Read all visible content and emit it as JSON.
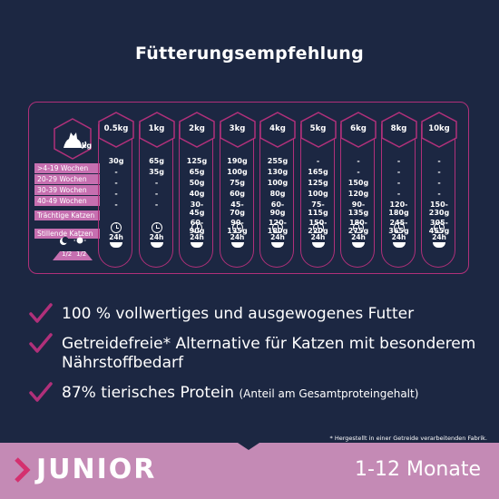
{
  "title": "Fütterungsempfehlung",
  "table": {
    "unit": "kg",
    "row_labels": [
      ">4-19 Wochen",
      "20-29 Wochen",
      "30-39 Wochen",
      "40-49 Wochen",
      "Trächtige Katzen",
      "Stillende Katzen"
    ],
    "meal_fractions": [
      "1/2",
      "1/2"
    ],
    "columns": [
      {
        "weight": "0.5kg",
        "values": [
          "30g",
          "-",
          "-",
          "-",
          "-",
          "-"
        ],
        "hours": "24h"
      },
      {
        "weight": "1kg",
        "values": [
          "65g",
          "35g",
          "-",
          "-",
          "-",
          "-"
        ],
        "hours": "24h"
      },
      {
        "weight": "2kg",
        "values": [
          "125g",
          "65g",
          "50g",
          "40g",
          "30-\n45g",
          "60-\n90g"
        ],
        "hours": "24h"
      },
      {
        "weight": "3kg",
        "values": [
          "190g",
          "100g",
          "75g",
          "60g",
          "45-\n70g",
          "90-\n135g"
        ],
        "hours": "24h"
      },
      {
        "weight": "4kg",
        "values": [
          "255g",
          "130g",
          "100g",
          "80g",
          "60-\n90g",
          "120-\n180g"
        ],
        "hours": "24h"
      },
      {
        "weight": "5kg",
        "values": [
          "-",
          "165g",
          "125g",
          "100g",
          "75-\n115g",
          "150-\n220g"
        ],
        "hours": "24h"
      },
      {
        "weight": "6kg",
        "values": [
          "-",
          "-",
          "150g",
          "120g",
          "90-\n135g",
          "180-\n275g"
        ],
        "hours": "24h"
      },
      {
        "weight": "8kg",
        "values": [
          "-",
          "-",
          "-",
          "-",
          "120-\n180g",
          "245-\n365g"
        ],
        "hours": "24h"
      },
      {
        "weight": "10kg",
        "values": [
          "-",
          "-",
          "-",
          "-",
          "150-\n230g",
          "305-\n455g"
        ],
        "hours": "24h"
      }
    ]
  },
  "benefits": [
    {
      "text": "100 % vollwertiges und ausgewogenes Futter",
      "note": ""
    },
    {
      "text": "Getreidefreie* Alternative für Katzen mit besonderem Nährstoffbedarf",
      "note": ""
    },
    {
      "text": "87% tierisches Protein",
      "note": "(Anteil am Gesamtproteingehalt)"
    }
  ],
  "footnote": "* Hergestellt in einer Getreide verarbeitenden Fabrik.",
  "band": {
    "name": "JUNIOR",
    "age": "1-12 Monate"
  },
  "colors": {
    "background": "#1c2742",
    "accent": "#b0307a",
    "label_bg": "#c66fb0",
    "band": "#c48ab5"
  }
}
